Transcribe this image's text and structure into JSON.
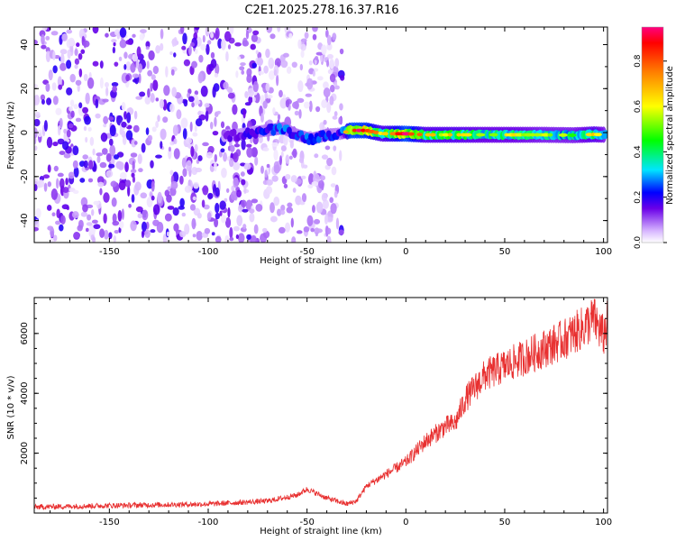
{
  "title": "C2E1.2025.278.16.37.R16",
  "colors": {
    "axis": "#000000",
    "snr_line": "#e83030",
    "background": "#ffffff"
  },
  "chart_data": [
    {
      "type": "heatmap",
      "name": "spectrogram",
      "xlabel": "Height of straight line (km)",
      "ylabel": "Frequency (Hz)",
      "xlim": [
        -188,
        102
      ],
      "ylim": [
        -50,
        48
      ],
      "xticks": [
        -150,
        -100,
        -50,
        0,
        50,
        100
      ],
      "xtick_labels": [
        "-150",
        "-100",
        "-50",
        "0",
        "50",
        "100"
      ],
      "yticks": [
        -40,
        -20,
        0,
        20,
        40
      ],
      "ytick_labels": [
        "-40",
        "-20",
        "0",
        "20",
        "40"
      ],
      "colorbar": {
        "label": "Normalized spectral amplitude",
        "range": [
          0,
          0.95
        ],
        "ticks": [
          0.0,
          0.2,
          0.4,
          0.6,
          0.8
        ],
        "tick_labels": [
          "0.0",
          "0.2",
          "0.4",
          "0.6",
          "0.8"
        ],
        "stops": [
          {
            "v": 0.0,
            "color": "#ffffff"
          },
          {
            "v": 0.05,
            "color": "#d8b8ff"
          },
          {
            "v": 0.15,
            "color": "#6a00e8"
          },
          {
            "v": 0.22,
            "color": "#0000ff"
          },
          {
            "v": 0.32,
            "color": "#00e5ff"
          },
          {
            "v": 0.45,
            "color": "#00ff00"
          },
          {
            "v": 0.6,
            "color": "#ffff00"
          },
          {
            "v": 0.75,
            "color": "#ff8000"
          },
          {
            "v": 0.88,
            "color": "#ff0000"
          },
          {
            "v": 0.95,
            "color": "#ff0080"
          }
        ]
      },
      "noise_region_km": [
        -188,
        -32
      ],
      "signal_band": [
        {
          "x": -92,
          "f": -1.5,
          "amp": 0.18
        },
        {
          "x": -85,
          "f": -1.0,
          "amp": 0.22
        },
        {
          "x": -78,
          "f": 0.0,
          "amp": 0.25
        },
        {
          "x": -70,
          "f": 1.0,
          "amp": 0.3
        },
        {
          "x": -62,
          "f": 2.0,
          "amp": 0.35
        },
        {
          "x": -55,
          "f": -1.0,
          "amp": 0.3
        },
        {
          "x": -48,
          "f": -3.0,
          "amp": 0.35
        },
        {
          "x": -40,
          "f": -1.0,
          "amp": 0.32
        },
        {
          "x": -33,
          "f": -0.5,
          "amp": 0.25
        },
        {
          "x": -28,
          "f": 1.0,
          "amp": 0.85
        },
        {
          "x": -20,
          "f": 1.0,
          "amp": 0.8
        },
        {
          "x": -12,
          "f": -0.5,
          "amp": 0.55
        },
        {
          "x": -5,
          "f": -0.5,
          "amp": 0.7
        },
        {
          "x": 0,
          "f": -0.5,
          "amp": 0.85
        },
        {
          "x": 10,
          "f": -1.0,
          "amp": 0.55
        },
        {
          "x": 25,
          "f": -1.0,
          "amp": 0.55
        },
        {
          "x": 40,
          "f": -1.0,
          "amp": 0.5
        },
        {
          "x": 55,
          "f": -1.0,
          "amp": 0.5
        },
        {
          "x": 70,
          "f": -1.0,
          "amp": 0.45
        },
        {
          "x": 85,
          "f": -1.2,
          "amp": 0.45
        },
        {
          "x": 95,
          "f": -0.8,
          "amp": 0.55
        },
        {
          "x": 101,
          "f": -1.0,
          "amp": 0.45
        }
      ]
    },
    {
      "type": "line",
      "name": "snr",
      "xlabel": "Height of straight line (km)",
      "ylabel": "SNR (10 * v/v)",
      "xlim": [
        -188,
        102
      ],
      "ylim": [
        0,
        7200
      ],
      "xticks": [
        -150,
        -100,
        -50,
        0,
        50,
        100
      ],
      "xtick_labels": [
        "-150",
        "-100",
        "-50",
        "0",
        "50",
        "100"
      ],
      "yticks": [
        2000,
        4000,
        6000
      ],
      "ytick_labels": [
        "2000",
        "4000",
        "6000"
      ],
      "trend": {
        "x": [
          -188,
          -150,
          -100,
          -70,
          -55,
          -50,
          -40,
          -30,
          -25,
          -20,
          -10,
          0,
          10,
          20,
          25,
          30,
          40,
          50,
          60,
          70,
          80,
          85,
          90,
          95,
          100,
          102
        ],
        "y": [
          200,
          250,
          300,
          400,
          600,
          800,
          500,
          300,
          400,
          900,
          1300,
          1700,
          2400,
          2900,
          3000,
          3800,
          4600,
          4900,
          5200,
          5500,
          5800,
          6000,
          6200,
          6500,
          5900,
          6400
        ]
      }
    }
  ]
}
